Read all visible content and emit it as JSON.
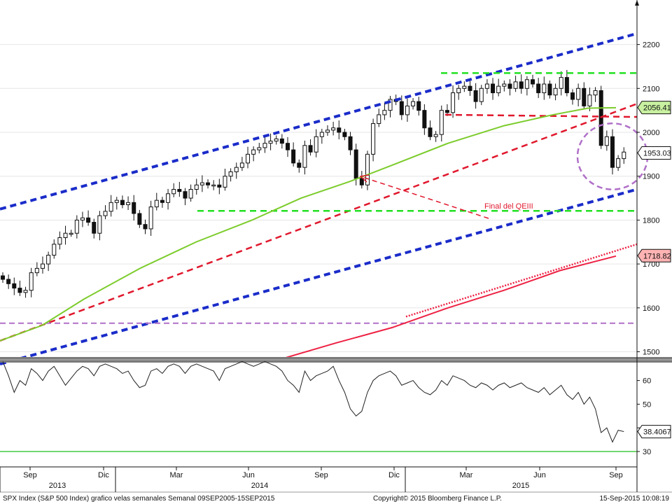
{
  "chart_data": {
    "type": "candlestick",
    "title": "",
    "footer": {
      "left": "SPX Index (S&P 500 Index) grafico velas semanales  Semanal 09SEP2005-15SEP2015",
      "center": "Copyright© 2015 Bloomberg Finance L.P.",
      "right": "15-Sep-2015 10:08:19"
    },
    "price_axis": {
      "ticks": [
        "2200",
        "2100",
        "2000",
        "1900",
        "1800",
        "1700",
        "1600",
        "1500"
      ],
      "ylim": [
        1480,
        2300
      ]
    },
    "rsi_axis": {
      "ticks": [
        "60",
        "50",
        "40",
        "30"
      ],
      "ylim": [
        27,
        68
      ]
    },
    "x_axis": {
      "month_labels": [
        "Sep",
        "Dic",
        "Mar",
        "Jun",
        "Sep",
        "Dic",
        "Mar",
        "Jun",
        "Sep"
      ],
      "year_labels": [
        "2013",
        "2014",
        "2015"
      ]
    },
    "last_values": {
      "ma_short": "2056.41",
      "price": "1953.03",
      "ma_long": "1718.82",
      "rsi": "38.4067"
    },
    "annotation": "Final del QEIII",
    "colors": {
      "candle": "#111111",
      "channel": "#1a2cc9",
      "trend": "#e0182d",
      "support": "#22e022",
      "ma_short": "#7ccc2c",
      "ma_long": "#ee2244",
      "purple": "#b070c8",
      "rsi": "#222222",
      "rsi_level": "#44cc44"
    }
  }
}
